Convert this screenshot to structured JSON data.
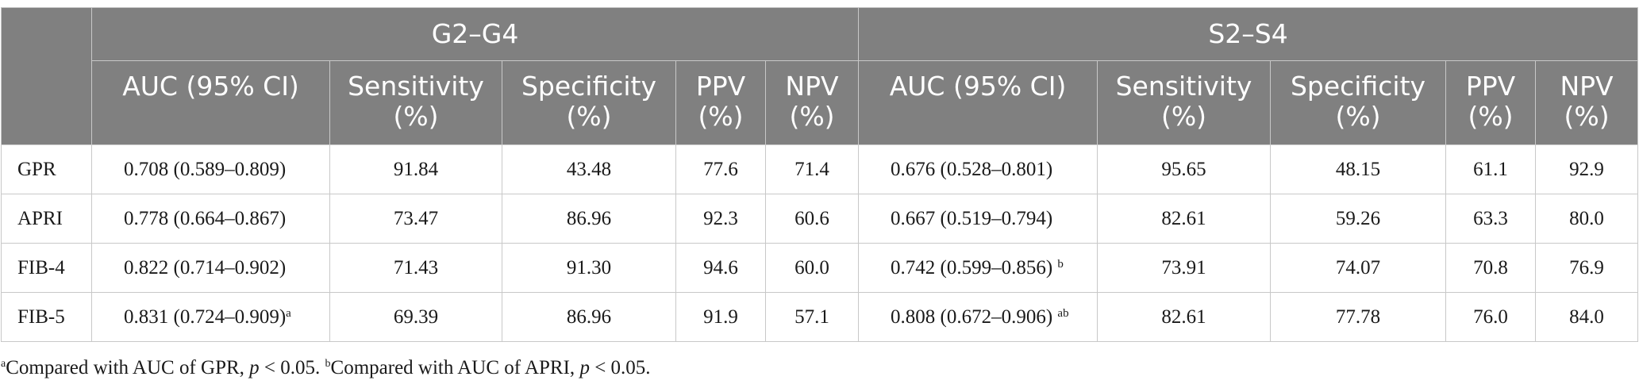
{
  "groups": [
    "G2–G4",
    "S2–S4"
  ],
  "columns": {
    "auc": "AUC (95% CI)",
    "sens": [
      "Sensitivity",
      "(%)"
    ],
    "spec": [
      "Specificity",
      "(%)"
    ],
    "ppv": [
      "PPV",
      "(%)"
    ],
    "npv": [
      "NPV",
      "(%)"
    ]
  },
  "rows": [
    {
      "label": "GPR",
      "g": {
        "auc": "0.708 (0.589–0.809)",
        "sup": "",
        "sens": "91.84",
        "spec": "43.48",
        "ppv": "77.6",
        "npv": "71.4"
      },
      "s": {
        "auc": "0.676 (0.528–0.801)",
        "sup": "",
        "sens": "95.65",
        "spec": "48.15",
        "ppv": "61.1",
        "npv": "92.9"
      }
    },
    {
      "label": "APRI",
      "g": {
        "auc": "0.778 (0.664–0.867)",
        "sup": "",
        "sens": "73.47",
        "spec": "86.96",
        "ppv": "92.3",
        "npv": "60.6"
      },
      "s": {
        "auc": "0.667 (0.519–0.794)",
        "sup": "",
        "sens": "82.61",
        "spec": "59.26",
        "ppv": "63.3",
        "npv": "80.0"
      }
    },
    {
      "label": "FIB-4",
      "g": {
        "auc": "0.822 (0.714–0.902)",
        "sup": "",
        "sens": "71.43",
        "spec": "91.30",
        "ppv": "94.6",
        "npv": "60.0"
      },
      "s": {
        "auc": "0.742 (0.599–0.856)",
        "sup": "b",
        "sens": "73.91",
        "spec": "74.07",
        "ppv": "70.8",
        "npv": "76.9"
      }
    },
    {
      "label": "FIB-5",
      "g": {
        "auc": "0.831 (0.724–0.909)",
        "sup": "a",
        "sens": "69.39",
        "spec": "86.96",
        "ppv": "91.9",
        "npv": "57.1"
      },
      "s": {
        "auc": "0.808 (0.672–0.906)",
        "sup": "ab",
        "sens": "82.61",
        "spec": "77.78",
        "ppv": "76.0",
        "npv": "84.0"
      }
    }
  ],
  "footnote": {
    "a_mark": "a",
    "a_text": "Compared with AUC of GPR, ",
    "p1": "p",
    "a_tail": " < 0.05. ",
    "b_mark": "b",
    "b_text": "Compared with AUC of APRI, ",
    "p2": "p",
    "b_tail": " < 0.05."
  }
}
